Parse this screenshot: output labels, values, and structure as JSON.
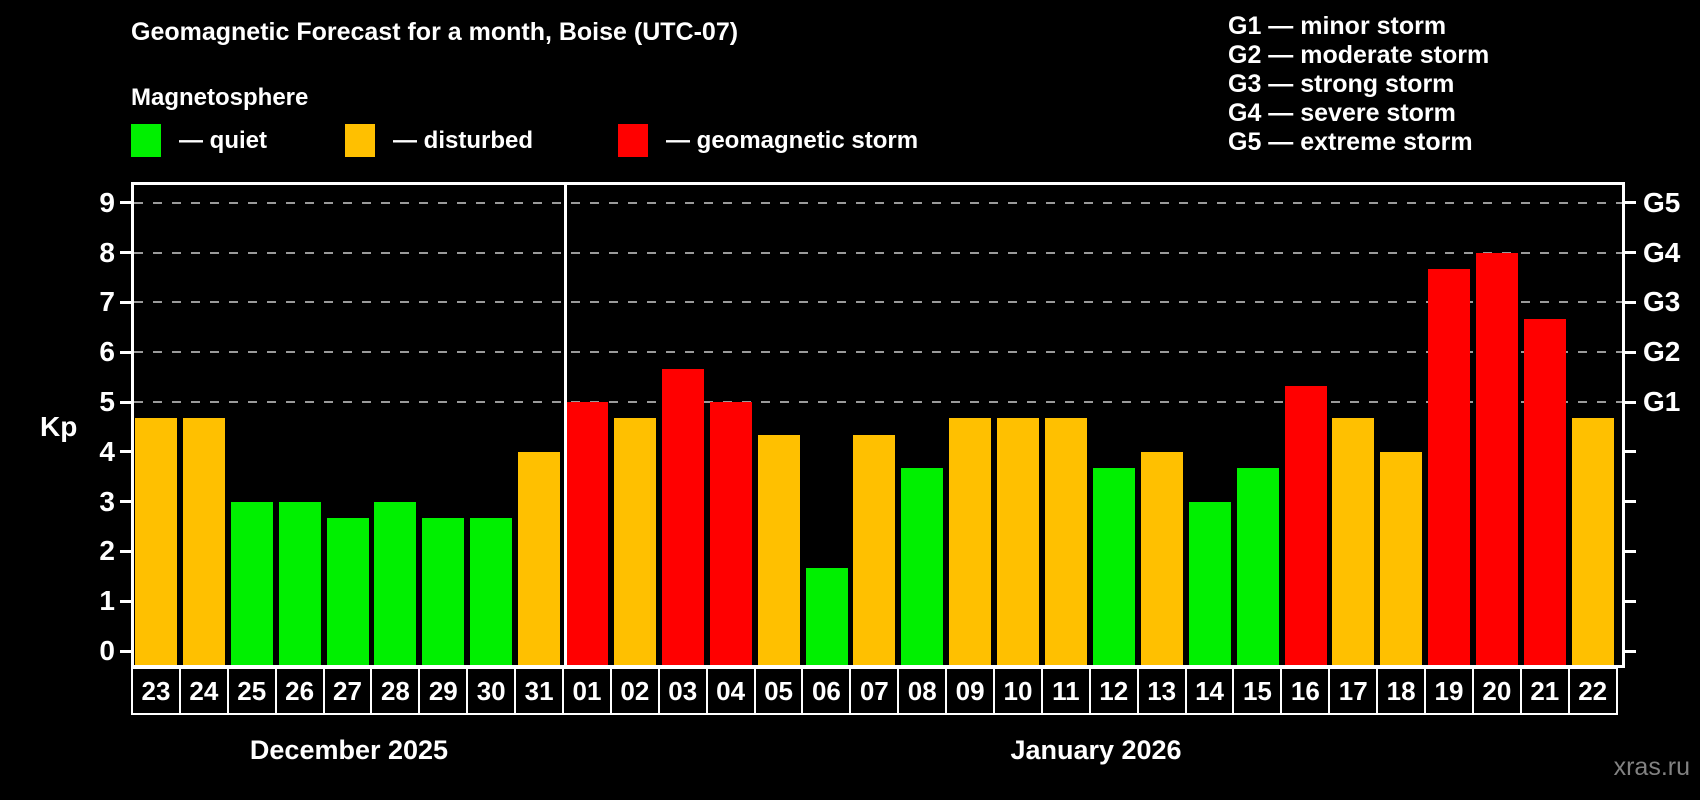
{
  "title": "Geomagnetic Forecast for a month, Boise (UTC-07)",
  "subtitle": "Magnetosphere",
  "legend": {
    "quiet": "— quiet",
    "disturbed": "— disturbed",
    "storm": "— geomagnetic storm"
  },
  "storm_scale_legend": [
    "G1 — minor storm",
    "G2 — moderate storm",
    "G3 — strong storm",
    "G4 — severe storm",
    "G5 — extreme storm"
  ],
  "watermark": "xras.ru",
  "colors": {
    "quiet": "#00F000",
    "disturbed": "#FFC000",
    "storm": "#FF0000",
    "grid": "#9A9A9A",
    "axis": "#FFFFFF",
    "background": "#000000"
  },
  "chart_data": {
    "type": "bar",
    "title": "Geomagnetic Forecast for a month, Boise (UTC-07)",
    "ylabel": "Kp",
    "ylim": [
      0,
      9
    ],
    "yticks": [
      0,
      1,
      2,
      3,
      4,
      5,
      6,
      7,
      8,
      9
    ],
    "gridlines_at_kp": [
      5,
      6,
      7,
      8,
      9
    ],
    "grid": "dashed horizontal at storm levels only",
    "legend_position": "top",
    "right_axis": [
      {
        "kp": 5,
        "label": "G1"
      },
      {
        "kp": 6,
        "label": "G2"
      },
      {
        "kp": 7,
        "label": "G3"
      },
      {
        "kp": 8,
        "label": "G4"
      },
      {
        "kp": 9,
        "label": "G5"
      }
    ],
    "months": [
      {
        "label": "December 2025",
        "days": [
          {
            "day": "23",
            "kp": 4.67,
            "level": "disturbed"
          },
          {
            "day": "24",
            "kp": 4.67,
            "level": "disturbed"
          },
          {
            "day": "25",
            "kp": 3.0,
            "level": "quiet"
          },
          {
            "day": "26",
            "kp": 3.0,
            "level": "quiet"
          },
          {
            "day": "27",
            "kp": 2.67,
            "level": "quiet"
          },
          {
            "day": "28",
            "kp": 3.0,
            "level": "quiet"
          },
          {
            "day": "29",
            "kp": 2.67,
            "level": "quiet"
          },
          {
            "day": "30",
            "kp": 2.67,
            "level": "quiet"
          },
          {
            "day": "31",
            "kp": 4.0,
            "level": "disturbed"
          }
        ]
      },
      {
        "label": "January 2026",
        "days": [
          {
            "day": "01",
            "kp": 5.0,
            "level": "storm"
          },
          {
            "day": "02",
            "kp": 4.67,
            "level": "disturbed"
          },
          {
            "day": "03",
            "kp": 5.67,
            "level": "storm"
          },
          {
            "day": "04",
            "kp": 5.0,
            "level": "storm"
          },
          {
            "day": "05",
            "kp": 4.33,
            "level": "disturbed"
          },
          {
            "day": "06",
            "kp": 1.67,
            "level": "quiet"
          },
          {
            "day": "07",
            "kp": 4.33,
            "level": "disturbed"
          },
          {
            "day": "08",
            "kp": 3.67,
            "level": "quiet"
          },
          {
            "day": "09",
            "kp": 4.67,
            "level": "disturbed"
          },
          {
            "day": "10",
            "kp": 4.67,
            "level": "disturbed"
          },
          {
            "day": "11",
            "kp": 4.67,
            "level": "disturbed"
          },
          {
            "day": "12",
            "kp": 3.67,
            "level": "quiet"
          },
          {
            "day": "13",
            "kp": 4.0,
            "level": "disturbed"
          },
          {
            "day": "14",
            "kp": 3.0,
            "level": "quiet"
          },
          {
            "day": "15",
            "kp": 3.67,
            "level": "quiet"
          },
          {
            "day": "16",
            "kp": 5.33,
            "level": "storm"
          },
          {
            "day": "17",
            "kp": 4.67,
            "level": "disturbed"
          },
          {
            "day": "18",
            "kp": 4.0,
            "level": "disturbed"
          },
          {
            "day": "19",
            "kp": 7.67,
            "level": "storm"
          },
          {
            "day": "20",
            "kp": 8.0,
            "level": "storm"
          },
          {
            "day": "21",
            "kp": 6.67,
            "level": "storm"
          },
          {
            "day": "22",
            "kp": 4.67,
            "level": "disturbed"
          }
        ]
      }
    ]
  }
}
